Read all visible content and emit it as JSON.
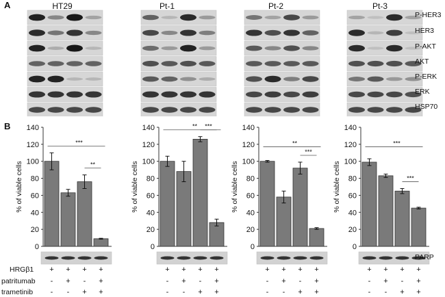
{
  "panel_a": {
    "letter": "A",
    "conditions": [
      "HT29",
      "Pt-1",
      "Pt-2",
      "Pt-3"
    ],
    "row_labels": [
      "P-HER3",
      "HER3",
      "P-AKT",
      "AKT",
      "P-ERK",
      "ERK",
      "HSP70"
    ],
    "band_intensity": [
      [
        [
          0.9,
          0.35,
          0.95,
          0.2
        ],
        [
          0.55,
          0.1,
          0.85,
          0.25
        ],
        [
          0.45,
          0.2,
          0.7,
          0.25
        ],
        [
          0.2,
          0.05,
          0.85,
          0.2
        ]
      ],
      [
        [
          0.85,
          0.45,
          0.8,
          0.35
        ],
        [
          0.7,
          0.35,
          0.8,
          0.4
        ],
        [
          0.8,
          0.65,
          0.8,
          0.55
        ],
        [
          0.85,
          0.1,
          0.75,
          0.05
        ]
      ],
      [
        [
          0.9,
          0.15,
          0.95,
          0.1
        ],
        [
          0.5,
          0.25,
          0.9,
          0.25
        ],
        [
          0.6,
          0.35,
          0.65,
          0.35
        ],
        [
          0.85,
          0.05,
          0.85,
          0.05
        ]
      ],
      [
        [
          0.55,
          0.55,
          0.55,
          0.55
        ],
        [
          0.65,
          0.6,
          0.65,
          0.6
        ],
        [
          0.6,
          0.6,
          0.6,
          0.6
        ],
        [
          0.65,
          0.65,
          0.65,
          0.6
        ]
      ],
      [
        [
          0.9,
          0.9,
          0.1,
          0.1
        ],
        [
          0.6,
          0.55,
          0.3,
          0.15
        ],
        [
          0.65,
          0.85,
          0.4,
          0.7
        ],
        [
          0.45,
          0.6,
          0.25,
          0.3
        ]
      ],
      [
        [
          0.8,
          0.8,
          0.8,
          0.8
        ],
        [
          0.8,
          0.8,
          0.8,
          0.8
        ],
        [
          0.7,
          0.75,
          0.7,
          0.75
        ],
        [
          0.7,
          0.7,
          0.7,
          0.65
        ]
      ],
      [
        [
          0.7,
          0.7,
          0.7,
          0.7
        ],
        [
          0.7,
          0.7,
          0.7,
          0.7
        ],
        [
          0.7,
          0.7,
          0.7,
          0.7
        ],
        [
          0.7,
          0.7,
          0.7,
          0.7
        ]
      ]
    ]
  },
  "panel_b": {
    "letter": "B",
    "parp_label": "PARP",
    "treatment_rows": [
      {
        "label": "HRGβ1",
        "signs": [
          "+",
          "+",
          "+",
          "+"
        ]
      },
      {
        "label": "patritumab",
        "signs": [
          "-",
          "+",
          "-",
          "+"
        ]
      },
      {
        "label": "trametinib",
        "signs": [
          "-",
          "-",
          "+",
          "+"
        ]
      }
    ]
  },
  "chart_data": [
    {
      "type": "bar",
      "title": "",
      "ylabel": "% of viable cells",
      "ylim": [
        0,
        140
      ],
      "yticks": [
        "0",
        "20",
        "40",
        "60",
        "80",
        "100",
        "120",
        "140"
      ],
      "values": [
        100,
        63,
        76,
        9
      ],
      "errors": [
        10,
        4,
        8,
        0.5
      ],
      "brackets": [
        {
          "from": 0,
          "to": 3,
          "label": "***"
        },
        {
          "from": 2,
          "to": 3,
          "label": "**"
        }
      ]
    },
    {
      "type": "bar",
      "title": "",
      "ylabel": "% of viable cells",
      "ylim": [
        0,
        140
      ],
      "yticks": [
        "0",
        "20",
        "40",
        "60",
        "80",
        "100",
        "120",
        "140"
      ],
      "values": [
        100,
        88,
        126,
        28
      ],
      "errors": [
        6,
        12,
        3,
        4
      ],
      "brackets": [
        {
          "from": 0,
          "to": 3,
          "label": "**"
        },
        {
          "from": 2,
          "to": 3,
          "label": "***"
        }
      ]
    },
    {
      "type": "bar",
      "title": "",
      "ylabel": "% of viable cells",
      "ylim": [
        0,
        140
      ],
      "yticks": [
        "0",
        "20",
        "40",
        "60",
        "80",
        "100",
        "120",
        "140"
      ],
      "values": [
        100,
        58,
        92,
        21
      ],
      "errors": [
        1,
        7,
        7,
        1
      ],
      "brackets": [
        {
          "from": 0,
          "to": 3,
          "label": "**"
        },
        {
          "from": 2,
          "to": 3,
          "label": "***"
        }
      ]
    },
    {
      "type": "bar",
      "title": "",
      "ylabel": "% of viable cells",
      "ylim": [
        0,
        140
      ],
      "yticks": [
        "0",
        "20",
        "40",
        "60",
        "80",
        "100",
        "120",
        "140"
      ],
      "values": [
        99,
        83,
        65,
        45
      ],
      "errors": [
        4,
        2,
        3,
        1
      ],
      "brackets": [
        {
          "from": 0,
          "to": 3,
          "label": "***"
        },
        {
          "from": 2,
          "to": 3,
          "label": "***"
        }
      ]
    }
  ]
}
